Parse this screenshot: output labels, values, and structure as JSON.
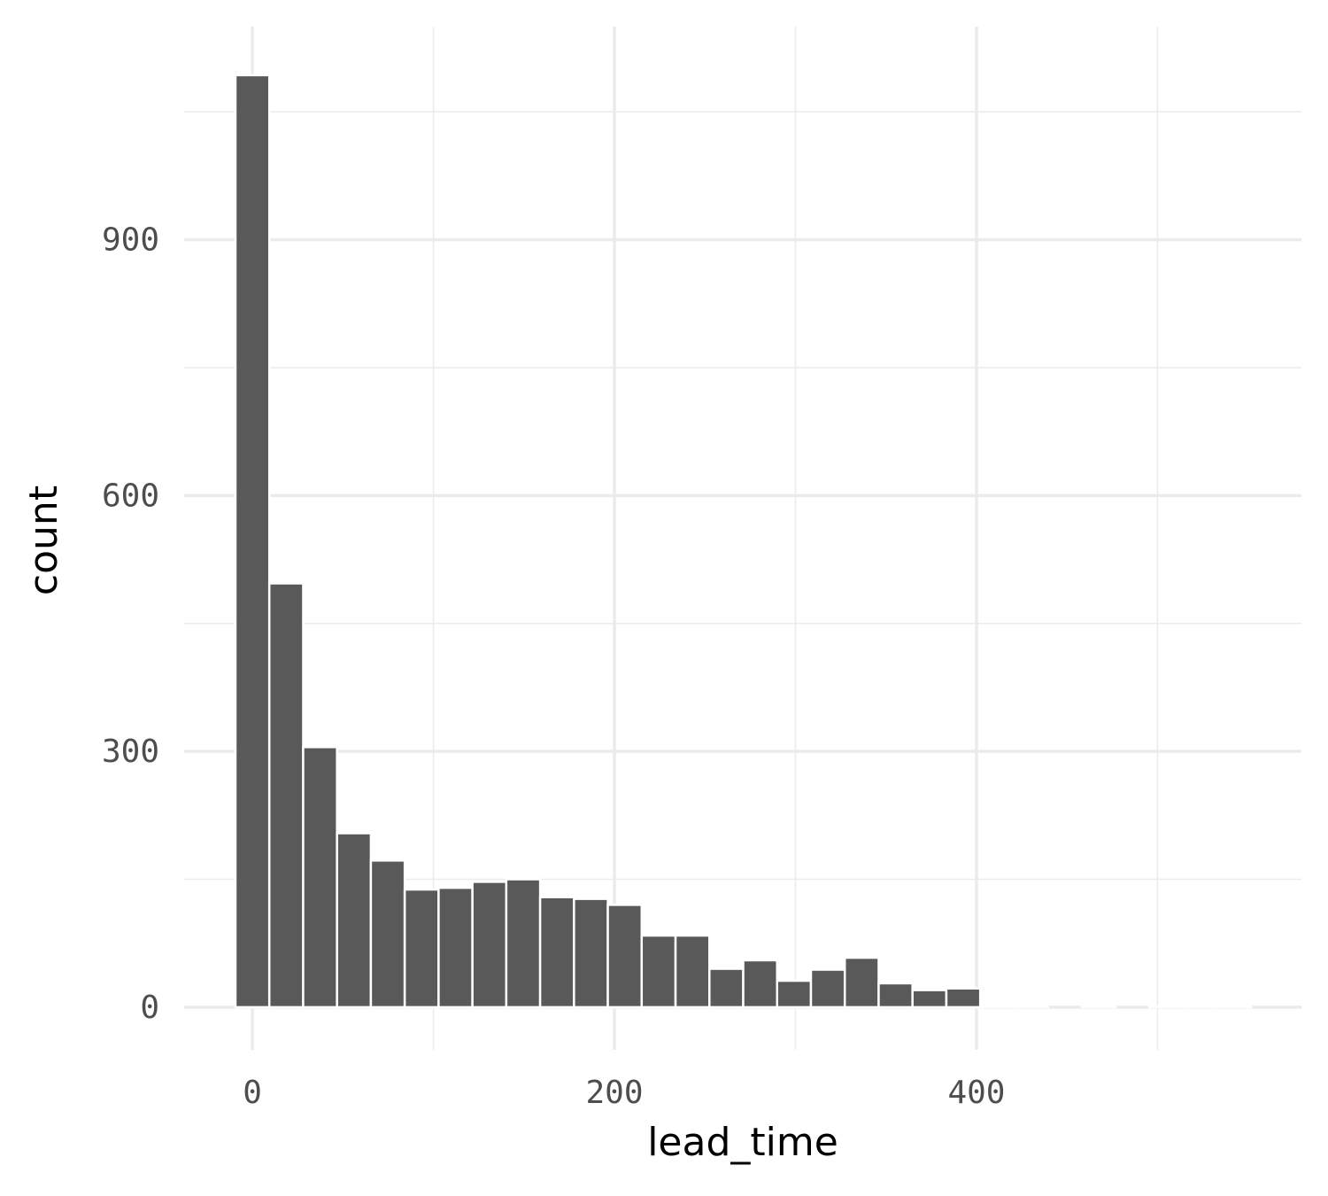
{
  "chart_data": {
    "type": "histogram",
    "x_label": "lead_time",
    "y_label": "count",
    "bins": [
      -9.35,
      9.35,
      28.05,
      46.75,
      65.45,
      84.15,
      102.85,
      121.55,
      140.25,
      158.95,
      177.65,
      196.35,
      215.05,
      233.75,
      252.45,
      271.15,
      289.85,
      308.55,
      327.25,
      345.95,
      364.65,
      383.35,
      402.05,
      420.75,
      439.45,
      458.15,
      476.85,
      495.55,
      514.25,
      532.95,
      551.65
    ],
    "values": [
      1093,
      497,
      305,
      204,
      172,
      138,
      140,
      147,
      150,
      129,
      127,
      120,
      84,
      84,
      45,
      55,
      31,
      44,
      58,
      28,
      20,
      22,
      1,
      1,
      0,
      1,
      0,
      1,
      1,
      1
    ],
    "color": "#595959",
    "xlim": [
      -37.7,
      579.5
    ],
    "xticks": [
      0,
      200,
      400
    ],
    "x_minor_ticks": [
      100,
      300,
      500
    ],
    "ylim": [
      -50,
      1150
    ],
    "yticks": [
      0,
      300,
      600,
      900
    ],
    "y_minor_ticks": [
      150,
      450,
      750,
      1050
    ],
    "grid": true
  }
}
